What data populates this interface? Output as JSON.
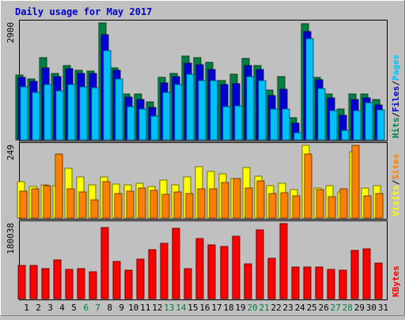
{
  "chart_data": {
    "title": "Daily usage for May 2017",
    "type": "bar",
    "colors": {
      "background": "#c0c0c0",
      "panel": "#c0c0c0",
      "frame": "#000000",
      "title": "#0000cc",
      "hits": "#008040",
      "files": "#0000d0",
      "pages": "#00c0ff",
      "visits": "#ffff00",
      "sites": "#ff8000",
      "kbytes": "#ff0000",
      "day_weekday": "#000000",
      "day_weekend": "#008040"
    },
    "categories": [
      "1",
      "2",
      "3",
      "4",
      "5",
      "6",
      "7",
      "8",
      "9",
      "10",
      "11",
      "12",
      "13",
      "14",
      "15",
      "16",
      "17",
      "18",
      "19",
      "20",
      "21",
      "22",
      "23",
      "24",
      "25",
      "26",
      "27",
      "28",
      "29",
      "30",
      "31"
    ],
    "weekend_days": [
      "6",
      "7",
      "13",
      "14",
      "20",
      "21",
      "27",
      "28"
    ],
    "panels": [
      {
        "scale_label": "2900",
        "max": 2900,
        "legend": [
          {
            "text": "Hits",
            "color": "#008040"
          },
          {
            "text": "/",
            "color": "#000000"
          },
          {
            "text": "Files",
            "color": "#0000d0"
          },
          {
            "text": "/",
            "color": "#000000"
          },
          {
            "text": "Pages",
            "color": "#00c0ff"
          }
        ],
        "series": [
          {
            "name": "Hits",
            "color": "#008040",
            "values": [
              1597,
              1503,
              2029,
              1654,
              1847,
              1729,
              1710,
              2900,
              1785,
              1146,
              1146,
              944,
              1541,
              1654,
              2077,
              2029,
              1925,
              1466,
              1635,
              2011,
              1840,
              1240,
              1560,
              553,
              2880,
              1540,
              1128,
              763,
              1128,
              1128,
              991
            ]
          },
          {
            "name": "Files",
            "color": "#0000d0",
            "values": [
              1540,
              1456,
              1791,
              1560,
              1767,
              1654,
              1640,
              2598,
              1729,
              1060,
              1007,
              810,
              1406,
              1566,
              1910,
              1860,
              1735,
              1366,
              1390,
              1837,
              1739,
              1100,
              1260,
              403,
              2680,
              1481,
              1030,
              610,
              1007,
              1030,
              870
            ]
          },
          {
            "name": "Pages",
            "color": "#00c0ff",
            "values": [
              1316,
              1166,
              1371,
              1222,
              1372,
              1322,
              1303,
              2210,
              1503,
              828,
              770,
              582,
              1166,
              1371,
              1625,
              1466,
              1466,
              828,
              847,
              1560,
              1466,
              772,
              755,
              172,
              2500,
              1278,
              732,
              226,
              732,
              923,
              753
            ]
          }
        ]
      },
      {
        "scale_label": "249",
        "max": 249,
        "legend": [
          {
            "text": "Visits",
            "color": "#ffff00"
          },
          {
            "text": "/",
            "color": "#000000"
          },
          {
            "text": "Sites",
            "color": "#ff8000"
          }
        ],
        "series": [
          {
            "name": "Visits",
            "color": "#ffff00",
            "values": [
              124,
              109,
              115,
              112,
              171,
              140,
              114,
              142,
              117,
              114,
              118,
              108,
              129,
              113,
              140,
              177,
              160,
              152,
              136,
              172,
              143,
              112,
              120,
              97,
              249,
              103,
              110,
              89,
              228,
              104,
              110
            ]
          },
          {
            "name": "Sites",
            "color": "#ff8000",
            "values": [
              91,
              99,
              110,
              218,
              101,
              90,
              63,
              125,
              84,
              91,
              104,
              95,
              80,
              90,
              85,
              100,
              101,
              123,
              134,
              103,
              126,
              85,
              87,
              77,
              218,
              98,
              73,
              101,
              249,
              76,
              85
            ]
          }
        ]
      },
      {
        "scale_label": "180038",
        "max": 180038,
        "legend": [
          {
            "text": "KBytes",
            "color": "#ff0000"
          }
        ],
        "series": [
          {
            "name": "KBytes",
            "color": "#ff0000",
            "values": [
              79636,
              79636,
              72708,
              93492,
              69245,
              72708,
              64050,
              170500,
              88300,
              67510,
              94685,
              118100,
              132400,
              168000,
              71180,
              143220,
              128000,
              126000,
              150200,
              83780,
              164500,
              97250,
              180038,
              75800,
              76100,
              75800,
              69245,
              67510,
              116000,
              119200,
              84350
            ]
          }
        ]
      }
    ]
  }
}
